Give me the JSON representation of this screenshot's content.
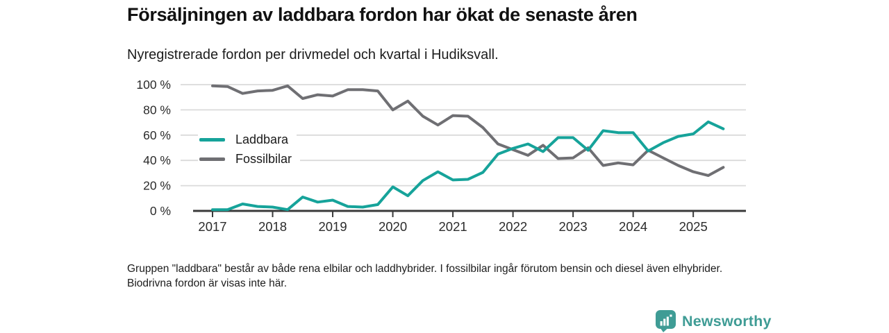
{
  "header": {
    "title": "Försäljningen av laddbara fordon har ökat de senaste åren",
    "subtitle": "Nyregistrerade fordon per drivmedel och kvartal i Hudiksvall."
  },
  "chart_data": {
    "type": "line",
    "frequency": "quarterly",
    "x_start": "2017 Q1",
    "x_end": "2025 Q3",
    "x_tick_labels": [
      "2017",
      "2018",
      "2019",
      "2020",
      "2021",
      "2022",
      "2023",
      "2024",
      "2025"
    ],
    "y_ticks": [
      {
        "value": 0,
        "label": "0 %"
      },
      {
        "value": 20,
        "label": "20 %"
      },
      {
        "value": 40,
        "label": "40 %"
      },
      {
        "value": 60,
        "label": "60 %"
      },
      {
        "value": 80,
        "label": "80 %"
      },
      {
        "value": 100,
        "label": "100 %"
      }
    ],
    "ylim": [
      0,
      100
    ],
    "grid": true,
    "legend_position": "inside-left",
    "series": [
      {
        "name": "Laddbara",
        "color": "#16a39a",
        "values": [
          1,
          1,
          5.5,
          3.5,
          3,
          1,
          11,
          7,
          8.5,
          3.5,
          3,
          5,
          19,
          12,
          24,
          31,
          24.5,
          25,
          30.5,
          45,
          49.5,
          53,
          47,
          58,
          58,
          48,
          63.5,
          62,
          62,
          47.5,
          54,
          59,
          61,
          70.5,
          65
        ]
      },
      {
        "name": "Fossilbilar",
        "color": "#6f6f73",
        "values": [
          99,
          98.5,
          93,
          95,
          95.5,
          99,
          89,
          92,
          91,
          96,
          96,
          95,
          80,
          87,
          75,
          68,
          75.5,
          75,
          66,
          53,
          48.5,
          44,
          52,
          41.5,
          42,
          50,
          36,
          38,
          36.5,
          48,
          42,
          36,
          31,
          28,
          34.5
        ]
      }
    ]
  },
  "footnote": "Gruppen \"laddbara\" består av både rena elbilar och laddhybrider. I fossilbilar ingår förutom bensin och diesel även elhybrider. Biodrivna fordon är visas inte här.",
  "branding": {
    "logo_text": "Newsworthy",
    "logo_color": "#3f9c95"
  }
}
